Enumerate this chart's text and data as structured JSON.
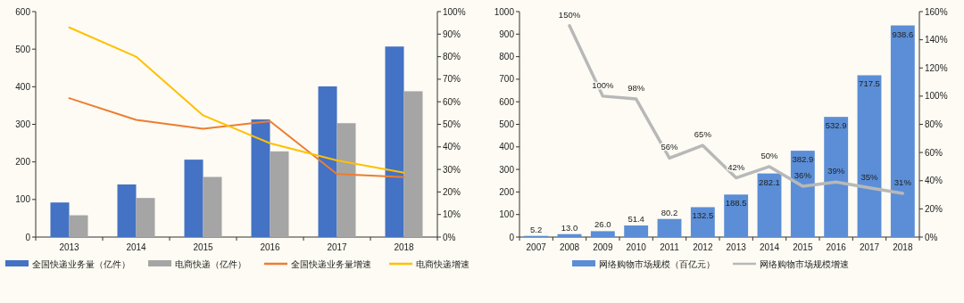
{
  "chart_data": [
    {
      "type": "bar",
      "categories": [
        "2013",
        "2014",
        "2015",
        "2016",
        "2017",
        "2018"
      ],
      "series": [
        {
          "name": "全国快递业务量（亿件）",
          "type": "bar",
          "color": "#4472c4",
          "values": [
            92,
            140,
            206,
            313,
            401,
            507
          ]
        },
        {
          "name": "电商快递（亿件）",
          "type": "bar",
          "color": "#a5a5a5",
          "values": [
            58,
            104,
            160,
            228,
            303,
            388
          ]
        },
        {
          "name": "全国快递业务量增速",
          "type": "line",
          "axis": "y2",
          "color": "#ed7d31",
          "values": [
            61.6,
            52,
            48,
            51.4,
            28,
            26.6
          ]
        },
        {
          "name": "电商快递增速",
          "type": "line",
          "axis": "y2",
          "color": "#ffc000",
          "values": [
            93,
            80,
            54,
            41.6,
            34,
            28.6
          ]
        }
      ],
      "ylim": [
        0,
        600
      ],
      "yticks": [
        0,
        100,
        200,
        300,
        400,
        500,
        600
      ],
      "y2lim": [
        0,
        100
      ],
      "y2ticks": [
        {
          "value": 0,
          "label": "0%"
        },
        {
          "value": 10,
          "label": "10%"
        },
        {
          "value": 20,
          "label": "20%"
        },
        {
          "value": 30,
          "label": "30%"
        },
        {
          "value": 40,
          "label": "40%"
        },
        {
          "value": 50,
          "label": "50%"
        },
        {
          "value": 60,
          "label": "60%"
        },
        {
          "value": 70,
          "label": "70%"
        },
        {
          "value": 80,
          "label": "80%"
        },
        {
          "value": 90,
          "label": "90%"
        },
        {
          "value": 100,
          "label": "100%"
        }
      ],
      "legend": "bottom"
    },
    {
      "type": "bar",
      "categories": [
        "2007",
        "2008",
        "2009",
        "2010",
        "2011",
        "2012",
        "2013",
        "2014",
        "2015",
        "2016",
        "2017",
        "2018"
      ],
      "series": [
        {
          "name": "网络购物市场规模（百亿元）",
          "type": "bar",
          "color": "#5b8ed6",
          "values": [
            5.2,
            13.0,
            26.0,
            51.4,
            80.2,
            132.5,
            188.5,
            282.1,
            382.9,
            532.9,
            717.5,
            938.6
          ],
          "value_labels": [
            "5.2",
            "13.0",
            "26.0",
            "51.4",
            "80.2",
            "132.5",
            "188.5",
            "282.1",
            "382.9",
            "532.9",
            "717.5",
            "938.6"
          ]
        },
        {
          "name": "网络购物市场规模增速",
          "type": "line",
          "axis": "y2",
          "color": "#b8b8b8",
          "values": [
            null,
            150,
            100,
            98,
            56,
            65,
            42,
            50,
            36,
            39,
            35,
            31
          ],
          "value_labels": [
            null,
            "150%",
            "100%",
            "98%",
            "56%",
            "65%",
            "42%",
            "50%",
            "36%",
            "39%",
            "35%",
            "31%"
          ]
        }
      ],
      "ylim": [
        0,
        1000
      ],
      "yticks": [
        0,
        100,
        200,
        300,
        400,
        500,
        600,
        700,
        800,
        900,
        1000
      ],
      "y2lim": [
        0,
        160
      ],
      "y2ticks": [
        {
          "value": 0,
          "label": "0%"
        },
        {
          "value": 20,
          "label": "20%"
        },
        {
          "value": 40,
          "label": "40%"
        },
        {
          "value": 60,
          "label": "60%"
        },
        {
          "value": 80,
          "label": "80%"
        },
        {
          "value": 100,
          "label": "100%"
        },
        {
          "value": 120,
          "label": "120%"
        },
        {
          "value": 140,
          "label": "140%"
        },
        {
          "value": 160,
          "label": "160%"
        }
      ],
      "legend": "bottom"
    }
  ]
}
